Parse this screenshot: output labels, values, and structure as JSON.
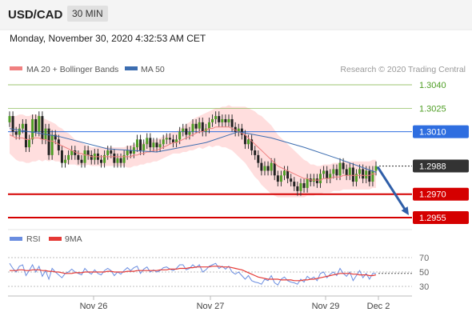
{
  "header": {
    "symbol": "USD/CAD",
    "timeframe": "30 MIN"
  },
  "timestamp": "Monday, November 30, 2020 4:32:53 AM CET",
  "legend": {
    "ma20": "MA 20 + Bollinger Bands",
    "ma50": "MA 50",
    "credit": "Research © 2020 Trading Central"
  },
  "rsi_legend": {
    "rsi": "RSI",
    "ma9": "9MA"
  },
  "colors": {
    "up": "#4e9e24",
    "green": "#7cb342",
    "blue": "#2f6ee0",
    "red": "#d50000",
    "dark": "#333333",
    "bollinger": "#ffd6d6",
    "ma20": "#f08080",
    "ma50": "#3c6db0",
    "rsi": "#6a8de0",
    "ma9": "#e53935",
    "arrow": "#2f5ea8"
  },
  "chart_data": [
    {
      "type": "candlestick",
      "x_labels": [
        "Nov 26",
        "Nov 27",
        "Nov 29",
        "Dec 2"
      ],
      "ylim": [
        1.295,
        1.3045
      ],
      "levels": [
        {
          "value": 1.304,
          "label": "1.3040",
          "color": "green"
        },
        {
          "value": 1.3025,
          "label": "1.3025",
          "color": "green"
        },
        {
          "value": 1.301,
          "label": "1.3010",
          "color": "blue"
        },
        {
          "value": 1.2988,
          "label": "1.2988",
          "color": "dark"
        },
        {
          "value": 1.297,
          "label": "1.2970",
          "color": "red"
        },
        {
          "value": 1.2955,
          "label": "1.2955",
          "color": "red"
        }
      ],
      "close": [
        1.302,
        1.301,
        1.3008,
        1.3012,
        1.3015,
        1.3,
        1.3005,
        1.3018,
        1.301,
        1.302,
        1.3005,
        1.3012,
        1.2995,
        1.3008,
        1.3005,
        1.2998,
        1.299,
        1.2992,
        1.2995,
        1.2998,
        1.2995,
        1.2992,
        1.299,
        1.2998,
        1.2995,
        1.2992,
        1.2996,
        1.2992,
        1.299,
        1.2995,
        1.2998,
        1.2996,
        1.299,
        1.2993,
        1.299,
        1.2995,
        1.2998,
        1.2996,
        1.3,
        1.3005,
        1.2998,
        1.3002,
        1.3006,
        1.3,
        1.3003,
        1.3,
        1.3002,
        1.3005,
        1.3006,
        1.3005,
        1.3003,
        1.3005,
        1.301,
        1.3012,
        1.3008,
        1.301,
        1.3015,
        1.3012,
        1.3016,
        1.301,
        1.3012,
        1.3016,
        1.3018,
        1.302,
        1.3016,
        1.3018,
        1.3016,
        1.3018,
        1.3013,
        1.301,
        1.3012,
        1.3008,
        1.3002,
        1.3005,
        1.2998,
        1.2995,
        1.299,
        1.2985,
        1.2988,
        1.2985,
        1.299,
        1.2982,
        1.2978,
        1.2982,
        1.2985,
        1.298,
        1.2978,
        1.2975,
        1.2972,
        1.2977,
        1.2974,
        1.298,
        1.2978,
        1.298,
        1.2977,
        1.2983,
        1.2985,
        1.298,
        1.2983,
        1.2986,
        1.2982,
        1.299,
        1.2986,
        1.2982,
        1.2987,
        1.2978,
        1.2983,
        1.2986,
        1.298,
        1.2985,
        1.2978,
        1.2985,
        1.2988
      ],
      "ma20": [
        1.3008,
        1.3007,
        1.3006,
        1.3006,
        1.3006,
        1.3005,
        1.3005,
        1.3006,
        1.3006,
        1.3006,
        1.3005,
        1.3005,
        1.3004,
        1.3004,
        1.3003,
        1.3002,
        1.3001,
        1.3,
        1.2999,
        1.2998,
        1.2997,
        1.2996,
        1.2996,
        1.2995,
        1.2995,
        1.2994,
        1.2994,
        1.2994,
        1.2994,
        1.2994,
        1.2994,
        1.2994,
        1.2994,
        1.2994,
        1.2994,
        1.2994,
        1.2994,
        1.2994,
        1.2995,
        1.2995,
        1.2996,
        1.2996,
        1.2997,
        1.2997,
        1.2998,
        1.2998,
        1.2999,
        1.3,
        1.3001,
        1.3002,
        1.3003,
        1.3003,
        1.3004,
        1.3005,
        1.3006,
        1.3007,
        1.3008,
        1.3009,
        1.301,
        1.301,
        1.3011,
        1.3012,
        1.3012,
        1.3013,
        1.3013,
        1.3013,
        1.3013,
        1.3013,
        1.3012,
        1.3011,
        1.301,
        1.3009,
        1.3008,
        1.3006,
        1.3004,
        1.3002,
        1.3,
        1.2998,
        1.2996,
        1.2994,
        1.2992,
        1.299,
        1.2988,
        1.2987,
        1.2986,
        1.2985,
        1.2984,
        1.2983,
        1.2982,
        1.2981,
        1.298,
        1.298,
        1.2979,
        1.2979,
        1.2979,
        1.2979,
        1.298,
        1.298,
        1.298,
        1.2981,
        1.2981,
        1.2981,
        1.2982,
        1.2982,
        1.2982,
        1.2982,
        1.2982,
        1.2982,
        1.2982,
        1.2982,
        1.2982,
        1.2983,
        1.2983
      ],
      "bollinger_width": [
        0.0012,
        0.0013,
        0.0014,
        0.0015,
        0.0015,
        0.0015,
        0.0015,
        0.0015,
        0.0015,
        0.0014,
        0.0014,
        0.0013,
        0.0013,
        0.0012,
        0.0012,
        0.0011,
        0.0011,
        0.001,
        0.001,
        0.0009,
        0.0008,
        0.0008,
        0.0007,
        0.0007,
        0.0006,
        0.0006,
        0.0006,
        0.0006,
        0.0006,
        0.0006,
        0.0006,
        0.0006,
        0.0006,
        0.0006,
        0.0006,
        0.0006,
        0.0007,
        0.0007,
        0.0007,
        0.0007,
        0.0007,
        0.0007,
        0.0007,
        0.0007,
        0.0007,
        0.0007,
        0.0007,
        0.0007,
        0.0007,
        0.0007,
        0.0007,
        0.0007,
        0.0008,
        0.0008,
        0.0009,
        0.0009,
        0.001,
        0.001,
        0.001,
        0.0011,
        0.0011,
        0.0011,
        0.0012,
        0.0012,
        0.0012,
        0.0013,
        0.0013,
        0.0014,
        0.0014,
        0.0015,
        0.0016,
        0.0017,
        0.0018,
        0.0019,
        0.002,
        0.0021,
        0.0021,
        0.0022,
        0.0022,
        0.0022,
        0.0022,
        0.0021,
        0.002,
        0.0019,
        0.0018,
        0.0017,
        0.0016,
        0.0015,
        0.0014,
        0.0013,
        0.0012,
        0.0011,
        0.001,
        0.001,
        0.0009,
        0.0009,
        0.0009,
        0.0009,
        0.0009,
        0.0009,
        0.0009,
        0.0009,
        0.0009,
        0.0009,
        0.0009,
        0.0009,
        0.0009,
        0.0009,
        0.0009,
        0.0009,
        0.0009,
        0.0009,
        0.0009
      ],
      "ma50_points": [
        [
          0,
          1.3012
        ],
        [
          15,
          1.3007
        ],
        [
          30,
          1.2999
        ],
        [
          45,
          1.2997
        ],
        [
          60,
          1.3003
        ],
        [
          70,
          1.301
        ],
        [
          80,
          1.3006
        ],
        [
          90,
          1.3
        ],
        [
          100,
          1.2993
        ],
        [
          112,
          1.2984
        ]
      ],
      "projection": {
        "from": 1.2988,
        "to": 1.2955
      }
    },
    {
      "type": "line",
      "name": "RSI panel",
      "ylim": [
        25,
        75
      ],
      "y_ticks": [
        70,
        50,
        30
      ],
      "rsi": [
        62,
        55,
        50,
        58,
        60,
        45,
        52,
        60,
        50,
        58,
        44,
        52,
        40,
        55,
        50,
        46,
        42,
        48,
        50,
        54,
        50,
        48,
        46,
        55,
        50,
        47,
        53,
        48,
        46,
        52,
        55,
        52,
        45,
        50,
        47,
        52,
        56,
        52,
        56,
        58,
        48,
        54,
        57,
        50,
        53,
        50,
        52,
        56,
        57,
        54,
        52,
        55,
        60,
        60,
        53,
        55,
        60,
        56,
        60,
        50,
        53,
        58,
        60,
        62,
        55,
        58,
        54,
        58,
        50,
        47,
        50,
        45,
        40,
        45,
        38,
        36,
        35,
        33,
        40,
        38,
        45,
        35,
        32,
        40,
        43,
        38,
        36,
        35,
        33,
        40,
        36,
        44,
        40,
        43,
        38,
        48,
        50,
        42,
        47,
        50,
        45,
        55,
        48,
        44,
        50,
        38,
        45,
        52,
        42,
        48,
        40,
        48,
        48
      ],
      "ma9": [
        52,
        52,
        52,
        53,
        53,
        52,
        52,
        53,
        53,
        53,
        52,
        52,
        51,
        51,
        50,
        50,
        49,
        48,
        48,
        48,
        49,
        49,
        49,
        50,
        50,
        50,
        50,
        50,
        50,
        50,
        51,
        51,
        50,
        50,
        50,
        50,
        51,
        51,
        51,
        52,
        52,
        52,
        52,
        52,
        52,
        52,
        53,
        53,
        53,
        54,
        54,
        54,
        55,
        55,
        55,
        56,
        56,
        57,
        57,
        57,
        57,
        57,
        58,
        58,
        58,
        57,
        57,
        57,
        56,
        55,
        54,
        53,
        51,
        49,
        47,
        45,
        43,
        42,
        41,
        40,
        40,
        40,
        40,
        39,
        39,
        39,
        39,
        38,
        38,
        38,
        39,
        39,
        40,
        40,
        41,
        42,
        43,
        44,
        45,
        46,
        47,
        48,
        48,
        48,
        48,
        47,
        47,
        46,
        46,
        46,
        45,
        45,
        46
      ]
    }
  ]
}
